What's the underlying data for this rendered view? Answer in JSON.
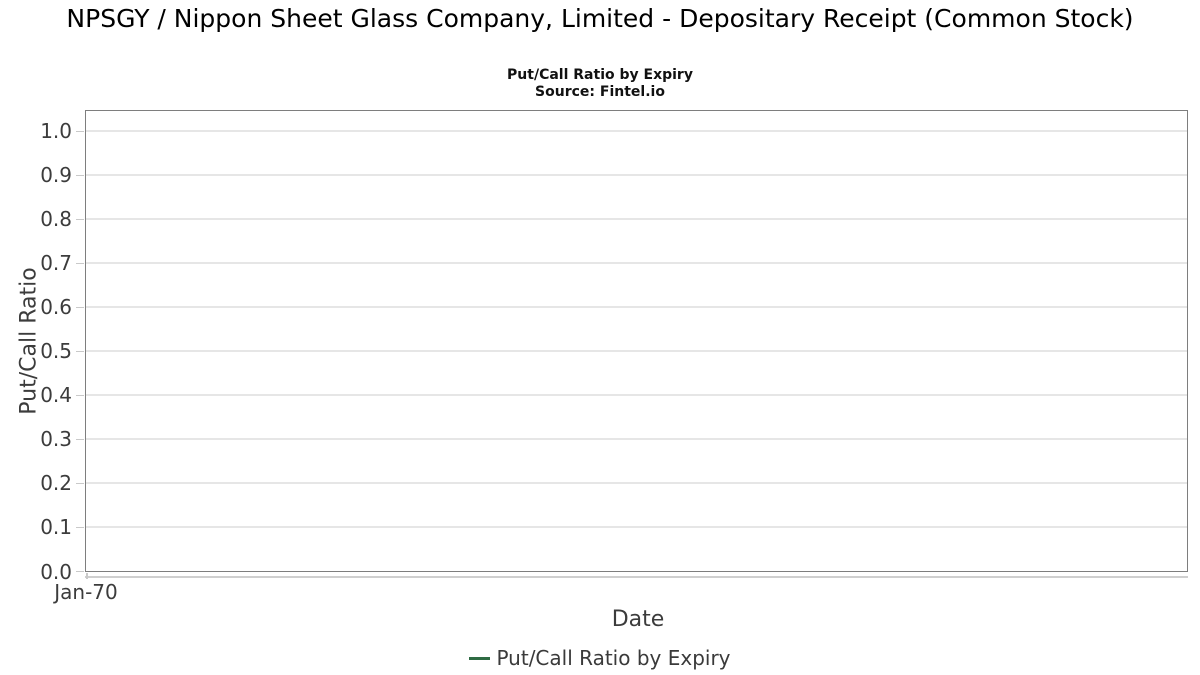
{
  "chart_data": {
    "type": "line",
    "title": "NPSGY / Nippon Sheet Glass Company, Limited - Depositary Receipt (Common Stock)",
    "subtitle": "Put/Call Ratio by Expiry",
    "source": "Source: Fintel.io",
    "xlabel": "Date",
    "ylabel": "Put/Call Ratio",
    "x_tick_labels": [
      "Jan-70"
    ],
    "y_ticks": [
      0.0,
      0.1,
      0.2,
      0.3,
      0.4,
      0.5,
      0.6,
      0.7,
      0.8,
      0.9,
      1.0
    ],
    "y_tick_labels": [
      "0.0",
      "0.1",
      "0.2",
      "0.3",
      "0.4",
      "0.5",
      "0.6",
      "0.7",
      "0.8",
      "0.9",
      "1.0"
    ],
    "ylim": [
      0,
      1.045
    ],
    "grid": "horizontal",
    "legend_position": "bottom-center",
    "series": [
      {
        "name": "Put/Call Ratio by Expiry",
        "color": "#2e6b43",
        "x": [],
        "values": []
      }
    ]
  },
  "legend": {
    "items": [
      {
        "label": "Put/Call Ratio by Expiry",
        "color": "#2e6b43"
      }
    ]
  },
  "colors": {
    "background": "#ffffff",
    "title_text": "#000000",
    "axis_text": "#3c3c3c",
    "plot_border": "#7e7e7e",
    "gridline": "#e6e6e6",
    "tick_mark": "#c9c9c9",
    "axis_line": "#cfcfcf",
    "series_green": "#2e6b43"
  }
}
